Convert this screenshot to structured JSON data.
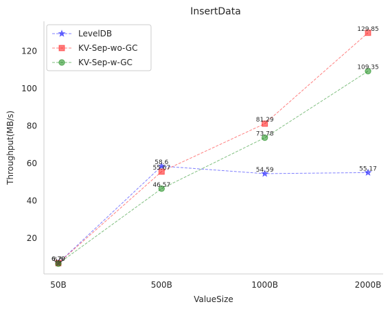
{
  "chart_data": {
    "type": "line",
    "title": "InsertData",
    "xlabel": "ValueSize",
    "ylabel": "Throughput(MB/s)",
    "categories": [
      "50B",
      "500B",
      "1000B",
      "2000B"
    ],
    "ylim": [
      1,
      136
    ],
    "yticks": [
      20,
      40,
      60,
      80,
      100,
      120
    ],
    "grid": false,
    "legend": "top-left",
    "series": [
      {
        "name": "LevelDB",
        "values": [
          6.79,
          58.6,
          54.59,
          55.17
        ],
        "labels": [
          "6.79",
          "58.6",
          "54.59",
          "55.17"
        ],
        "color": "#0000ff",
        "marker": "star"
      },
      {
        "name": "KV-Sep-wo-GC",
        "values": [
          6.79,
          55.67,
          81.29,
          129.85
        ],
        "labels": [
          "6.79",
          "55.67",
          "81.29",
          "129.85"
        ],
        "color": "#ff0000",
        "marker": "square"
      },
      {
        "name": "KV-Sep-w-GC",
        "values": [
          6.5,
          46.57,
          73.78,
          109.35
        ],
        "labels": [
          "6.5",
          "46.57",
          "73.78",
          "109.35"
        ],
        "color": "#008000",
        "marker": "circle"
      }
    ]
  }
}
